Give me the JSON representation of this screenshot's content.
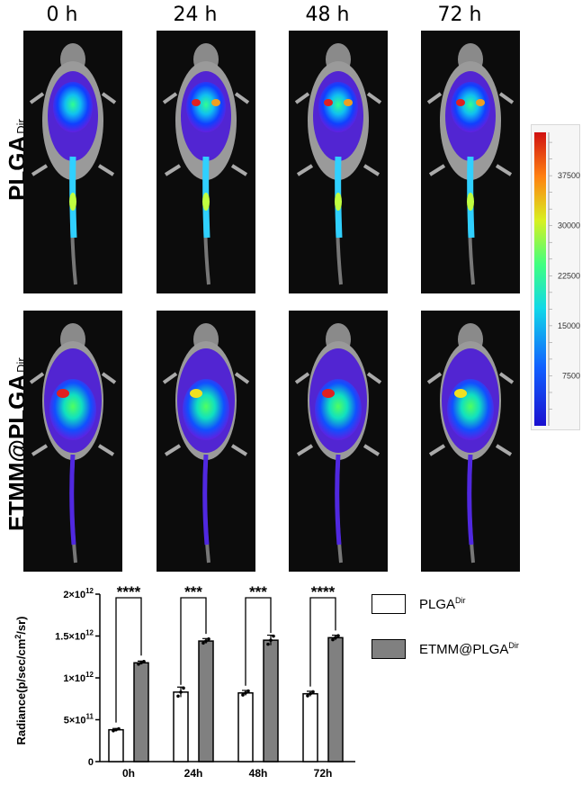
{
  "timepoints": [
    "0  h",
    "24  h",
    "48  h",
    "72  h"
  ],
  "rows": [
    {
      "label": "PLGA",
      "sub": "Dir"
    },
    {
      "label": "ETMM@PLGA",
      "sub": "Dir"
    }
  ],
  "colorbar": {
    "ticks": [
      "37500",
      "30000",
      "22500",
      "15000",
      "7500"
    ],
    "tick_values": [
      37500,
      30000,
      22500,
      15000,
      7500
    ],
    "min": 0,
    "max": 44000
  },
  "chart_data": {
    "type": "bar",
    "categories": [
      "0h",
      "24h",
      "48h",
      "72h"
    ],
    "series": [
      {
        "name": "PLGA",
        "name_sup": "Dir",
        "color": "#ffffff",
        "values": [
          380000000000.0,
          830000000000.0,
          820000000000.0,
          810000000000.0
        ],
        "errors": [
          15000000000.0,
          60000000000.0,
          30000000000.0,
          30000000000.0
        ]
      },
      {
        "name": "ETMM@PLGA",
        "name_sup": "Dir",
        "color": "#808080",
        "values": [
          1180000000000.0,
          1440000000000.0,
          1450000000000.0,
          1480000000000.0
        ],
        "errors": [
          20000000000.0,
          30000000000.0,
          60000000000.0,
          30000000000.0
        ]
      }
    ],
    "significance": [
      "****",
      "***",
      "***",
      "****"
    ],
    "ylabel": "Radiance(p/sec/cm",
    "ylabel_sup": "2",
    "ylabel_end": "/sr)",
    "yticks": [
      {
        "value": 0,
        "label": "0",
        "exp": ""
      },
      {
        "value": 500000000000.0,
        "label": "5×10",
        "exp": "11"
      },
      {
        "value": 1000000000000.0,
        "label": "1×10",
        "exp": "12"
      },
      {
        "value": 1500000000000.0,
        "label": "1.5×10",
        "exp": "12"
      },
      {
        "value": 2000000000000.0,
        "label": "2×10",
        "exp": "12"
      }
    ],
    "ylim": [
      0,
      2000000000000.0
    ],
    "legend": "right"
  }
}
